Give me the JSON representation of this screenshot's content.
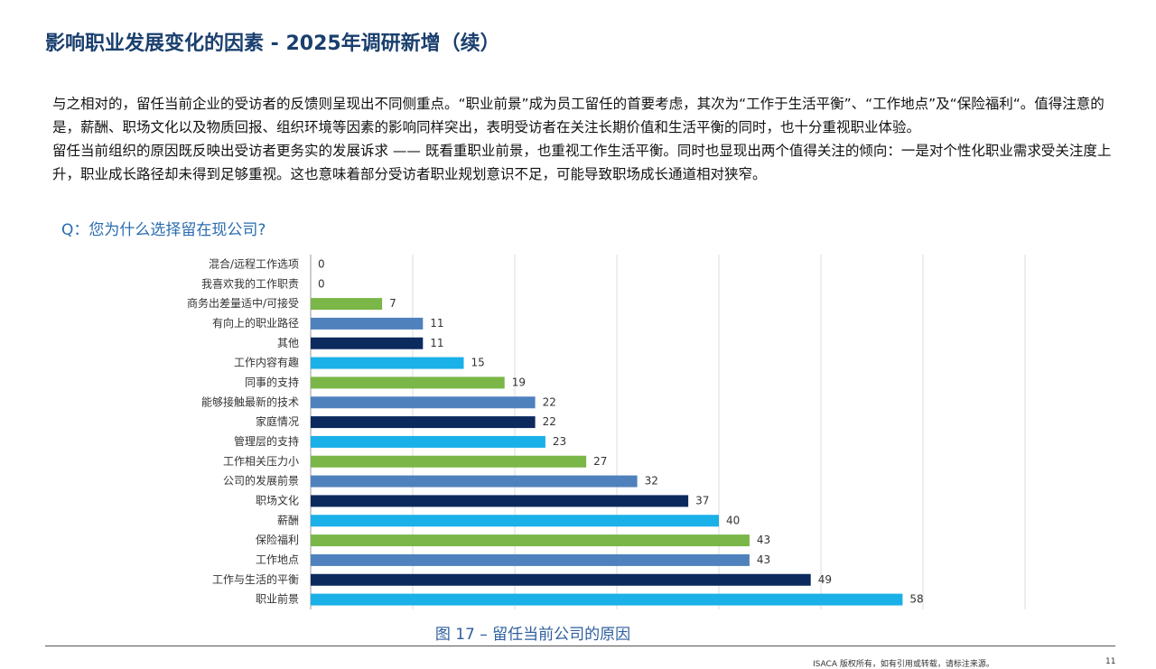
{
  "header": {
    "title": "影响职业发展变化的因素 - 2025年调研新增（续）"
  },
  "paragraphs": [
    "与之相对的，留任当前企业的受访者的反馈则呈现出不同侧重点。“职业前景”成为员工留任的首要考虑，其次为“工作于生活平衡”、“工作地点”及“保险福利“。值得注意的是，薪酬、职场文化以及物质回报、组织环境等因素的影响同样突出，表明受访者在关注长期价值和生活平衡的同时，也十分重视职业体验。",
    "留任当前组织的原因既反映出受访者更务实的发展诉求 —— 既看重职业前景，也重视工作生活平衡。同时也显现出两个值得关注的倾向：一是对个性化职业需求受关注度上升，职业成长路径却未得到足够重视。这也意味着部分受访者职业规划意识不足，可能导致职场成长通道相对狭窄。"
  ],
  "question": "Q：您为什么选择留在现公司?",
  "footer": {
    "copyright": "ISACA 版权所有，如有引用或转载，请标注来源。",
    "page": "11"
  },
  "chart_data": {
    "type": "hbar",
    "caption": "图 17 – 留任当前公司的原因",
    "categories": [
      "混合/远程工作选项",
      "我喜欢我的工作职责",
      "商务出差量适中/可接受",
      "有向上的职业路径",
      "其他",
      "工作内容有趣",
      "同事的支持",
      "能够接触最新的技术",
      "家庭情况",
      "管理层的支持",
      "工作相关压力小",
      "公司的发展前景",
      "职场文化",
      "薪酬",
      "保险福利",
      "工作地点",
      "工作与生活的平衡",
      "职业前景"
    ],
    "values": [
      0,
      0,
      7,
      11,
      11,
      15,
      19,
      22,
      22,
      23,
      27,
      32,
      37,
      40,
      43,
      43,
      49,
      58
    ],
    "colors": [
      "#0d2a5f",
      "#1ab0e8",
      "#7ab648",
      "#4f81bd",
      "#0d2a5f",
      "#1ab0e8",
      "#7ab648",
      "#4f81bd",
      "#0d2a5f",
      "#1ab0e8",
      "#7ab648",
      "#4f81bd",
      "#0d2a5f",
      "#1ab0e8",
      "#7ab648",
      "#4f81bd",
      "#0d2a5f",
      "#1ab0e8"
    ],
    "xlim": [
      0,
      70
    ],
    "xticks": [
      0,
      10,
      20,
      30,
      40,
      50,
      60,
      70
    ],
    "grid": true
  }
}
